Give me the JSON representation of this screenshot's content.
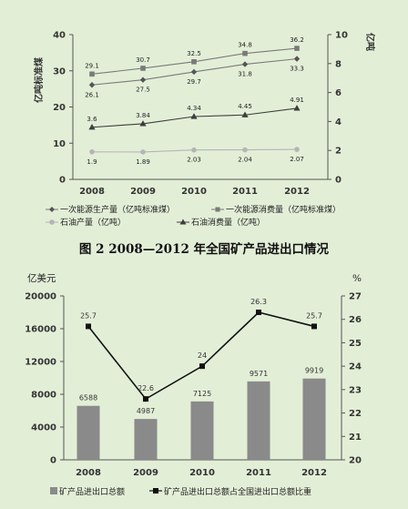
{
  "colors": {
    "background": "#e3eed7",
    "series_gray": "#7a7a7a",
    "series_light": "#b5b5b5",
    "series_dark": "#3d3d3d",
    "bar": "#8a8a8a",
    "line_black": "#111111"
  },
  "figure2_title": "图 2   2008—2012 年全国矿产品进出口情况",
  "chart_data": [
    {
      "type": "line",
      "categories": [
        "2008",
        "2009",
        "2010",
        "2011",
        "2012"
      ],
      "ylabel_left": "亿吨标准煤",
      "ylabel_right": "亿吨",
      "ylim_left": [
        0,
        40
      ],
      "ylim_right": [
        0,
        10
      ],
      "yticks_left": [
        "0",
        "10",
        "20",
        "30",
        "40"
      ],
      "yticks_right": [
        "0",
        "2",
        "4",
        "6",
        "8",
        "10"
      ],
      "series": [
        {
          "name": "一次能源生产量（亿吨标准煤）",
          "axis": "left",
          "marker": "diamond",
          "values": [
            26.1,
            27.5,
            29.7,
            31.8,
            33.3
          ],
          "labels": [
            "26.1",
            "27.5",
            "29.7",
            "31.8",
            "33.3"
          ]
        },
        {
          "name": "一次能源消费量（亿吨标准煤）",
          "axis": "left",
          "marker": "square",
          "values": [
            29.1,
            30.7,
            32.5,
            34.8,
            36.2
          ],
          "labels": [
            "29.1",
            "30.7",
            "32.5",
            "34.8",
            "36.2"
          ]
        },
        {
          "name": "石油产量（亿吨）",
          "axis": "right",
          "marker": "circle",
          "values": [
            1.9,
            1.89,
            2.03,
            2.04,
            2.07
          ],
          "labels": [
            "1.9",
            "1.89",
            "2.03",
            "2.04",
            "2.07"
          ]
        },
        {
          "name": "石油消费量（亿吨）",
          "axis": "right",
          "marker": "triangle",
          "values": [
            3.6,
            3.84,
            4.34,
            4.45,
            4.91
          ],
          "labels": [
            "3.6",
            "3.84",
            "4.34",
            "4.45",
            "4.91"
          ]
        }
      ],
      "legend_position": "bottom",
      "grid": false
    },
    {
      "type": "bar",
      "categories": [
        "2008",
        "2009",
        "2010",
        "2011",
        "2012"
      ],
      "ylabel_left": "亿美元",
      "ylabel_right": "%",
      "ylim_left": [
        0,
        20000
      ],
      "ylim_right": [
        20,
        27
      ],
      "yticks_left": [
        "0",
        "4000",
        "8000",
        "12000",
        "16000",
        "20000"
      ],
      "yticks_right": [
        "20",
        "21",
        "22",
        "23",
        "24",
        "25",
        "26",
        "27"
      ],
      "series": [
        {
          "name": "矿产品进出口总额",
          "axis": "left",
          "kind": "bar",
          "values": [
            6588,
            4987,
            7125,
            9571,
            9919
          ],
          "labels": [
            "6588",
            "4987",
            "7125",
            "9571",
            "9919"
          ]
        },
        {
          "name": "矿产品进出口总额占全国进出口总额比重",
          "axis": "right",
          "kind": "line",
          "marker": "square",
          "values": [
            25.7,
            22.6,
            24,
            26.3,
            25.7
          ],
          "labels": [
            "25.7",
            "22.6",
            "24",
            "26.3",
            "25.7"
          ]
        }
      ],
      "legend_position": "bottom",
      "grid": false
    }
  ]
}
